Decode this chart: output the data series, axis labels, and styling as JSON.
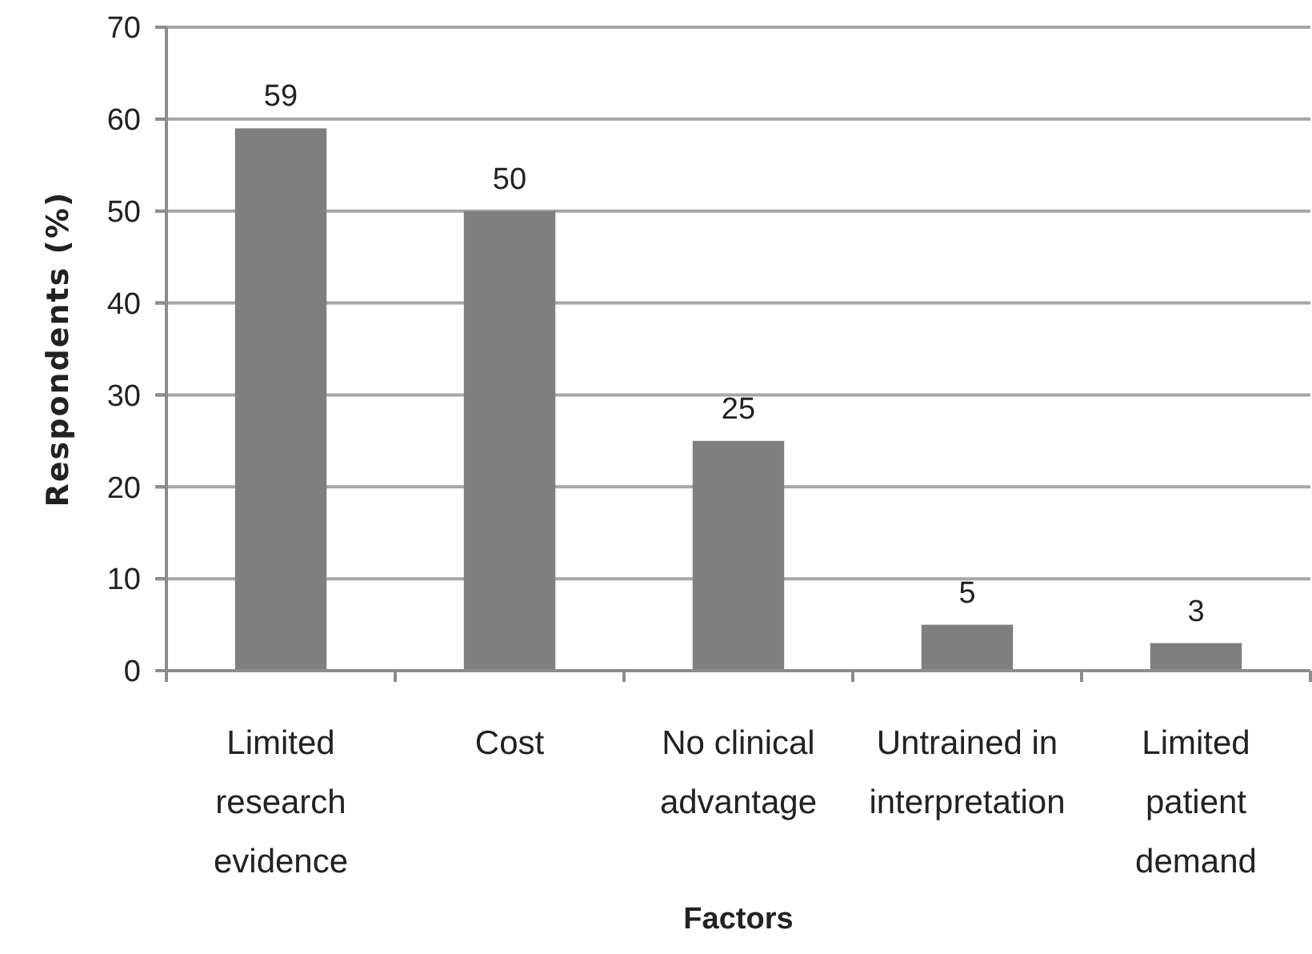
{
  "chart_data": {
    "type": "bar",
    "xlabel": "Factors",
    "ylabel": "Respondents (%)",
    "categories": [
      "Limited research evidence",
      "Cost",
      "No clinical advantage",
      "Untrained in interpretation",
      "Limited patient demand"
    ],
    "values": [
      59,
      50,
      25,
      5,
      3
    ],
    "color": "#7f7f7f",
    "data_labels": true,
    "ylim": [
      0,
      70
    ],
    "yticks": [
      0,
      10,
      20,
      30,
      40,
      50,
      60,
      70
    ],
    "grid": "y"
  }
}
